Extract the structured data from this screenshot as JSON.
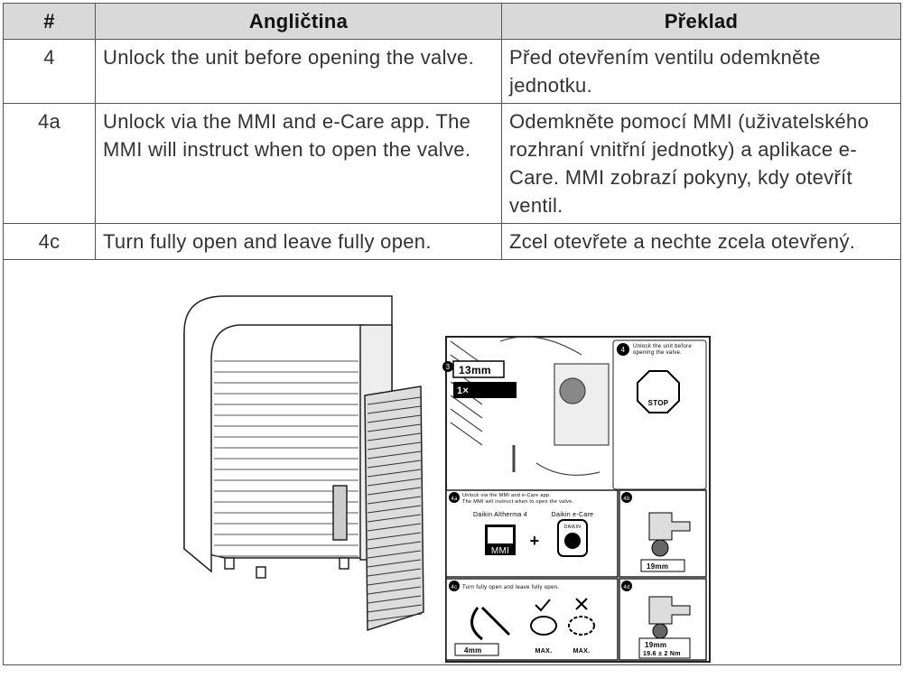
{
  "table": {
    "header": [
      "#",
      "Angličtina",
      "Překlad"
    ],
    "rows": [
      [
        "4",
        "Unlock the unit before opening the valve.",
        "Před otevřením ventilu odemkněte jednotku."
      ],
      [
        "4a",
        "Unlock via the MMI and e-Care app. The MMI will instruct when to open the valve.",
        "Odemkněte pomocí MMI (uživatelského rozhraní vnitřní jednotky) a aplikace e-Care. MMI zobrazí pokyny, kdy otevřít ventil."
      ],
      [
        "4c",
        "Turn fully open and leave fully open.",
        "Zcel otevřete a nechte zcela otevřený."
      ]
    ]
  },
  "figure": {
    "step3": {
      "label": "3",
      "tool": "13mm",
      "count": "1×"
    },
    "step4": {
      "label": "4",
      "text": [
        "Unlock the unit before",
        "opening the valve."
      ],
      "sign": "STOP"
    },
    "step4a": {
      "label": "4a",
      "text": [
        "Unlock via the MMI and e-Care app.",
        "The MMI will instruct when to open the valve."
      ],
      "left": "Daikin Altherma 4",
      "right": "Daikin e-Care",
      "brand": "DAIKIN",
      "screen": "MMI"
    },
    "step4b": {
      "label": "4b",
      "tool": "19mm"
    },
    "step4c": {
      "label": "4c",
      "text": "Turn fully open and leave fully open.",
      "tool": "4mm",
      "max": [
        "MAX.",
        "MAX."
      ]
    },
    "step4d": {
      "label": "4d",
      "tool": "19mm",
      "torque": "19.6 ± 2 Nm"
    }
  }
}
